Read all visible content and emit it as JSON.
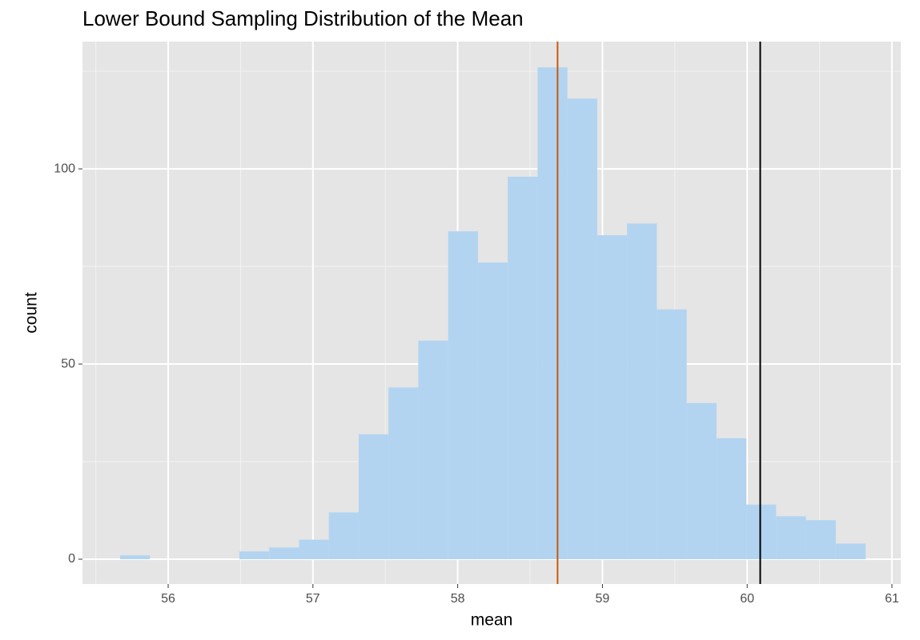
{
  "chart_data": {
    "type": "histogram",
    "title": "Lower Bound Sampling Distribution of the Mean",
    "x_label": "mean",
    "y_label": "count",
    "bins": [
      55.668,
      55.874,
      56.08,
      56.286,
      56.492,
      56.698,
      56.904,
      57.11,
      57.316,
      57.522,
      57.728,
      57.934,
      58.14,
      58.346,
      58.552,
      58.758,
      58.964,
      59.17,
      59.376,
      59.582,
      59.788,
      59.994,
      60.2,
      60.406,
      60.612,
      60.818
    ],
    "values": [
      1,
      0,
      0,
      0,
      2,
      3,
      5,
      12,
      32,
      44,
      56,
      84,
      76,
      98,
      126,
      118,
      83,
      86,
      64,
      40,
      31,
      14,
      11,
      10,
      4
    ],
    "color": "#b2d4f1",
    "vlines": [
      {
        "value": 58.69,
        "color": "#c55a11"
      },
      {
        "value": 60.09,
        "color": "#000000"
      }
    ],
    "xlim": [
      55.408,
      61.061
    ],
    "ylim": [
      -6.35,
      132.6
    ],
    "xticks": [
      56,
      57,
      58,
      59,
      60,
      61
    ],
    "yticks": [
      0,
      50,
      100
    ],
    "minor_xticks": [
      55.5,
      56.5,
      57.5,
      58.5,
      59.5,
      60.5
    ],
    "minor_yticks": [
      25,
      75,
      125
    ],
    "grid": true
  }
}
